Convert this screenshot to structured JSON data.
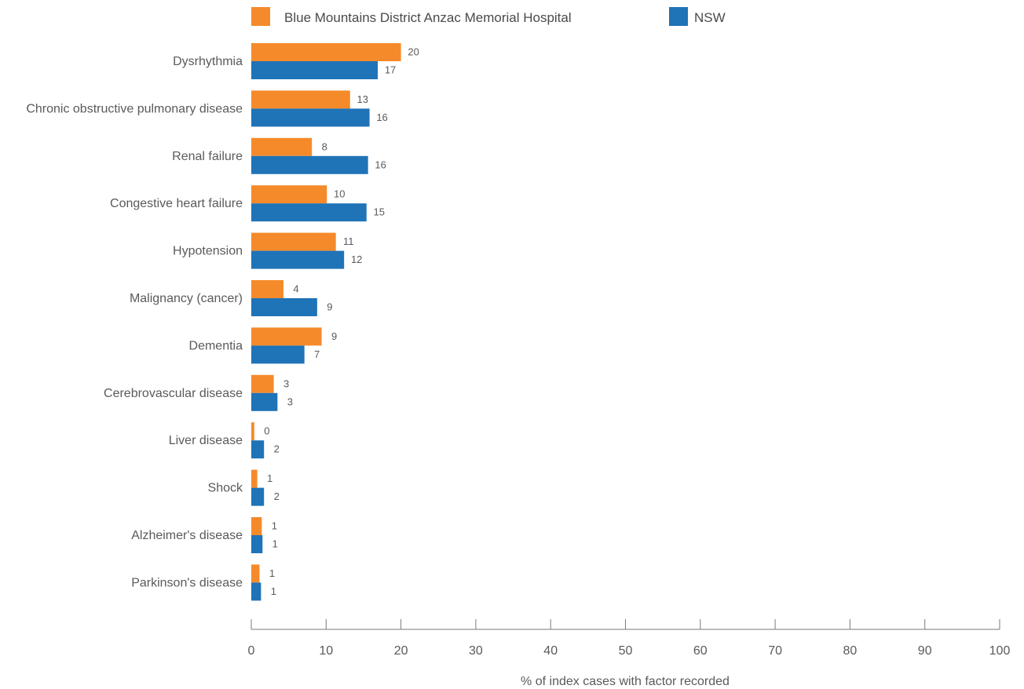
{
  "chart_data": {
    "type": "bar",
    "orientation": "horizontal",
    "categories": [
      "Dysrhythmia",
      "Chronic obstructive pulmonary disease",
      "Renal failure",
      "Congestive heart failure",
      "Hypotension",
      "Malignancy (cancer)",
      "Dementia",
      "Cerebrovascular disease",
      "Liver disease",
      "Shock",
      "Alzheimer's disease",
      "Parkinson's disease"
    ],
    "series": [
      {
        "name": "Blue Mountains District Anzac Memorial Hospital",
        "color": "#f58a2a",
        "values": [
          20,
          13.2,
          8.1,
          10.1,
          11.3,
          4.3,
          9.4,
          3,
          0.4,
          0.8,
          1.4,
          1.1
        ],
        "labels": [
          "20",
          "13",
          "8",
          "10",
          "11",
          "4",
          "9",
          "3",
          "0",
          "1",
          "1",
          "1"
        ]
      },
      {
        "name": "NSW",
        "color": "#1f73b7",
        "values": [
          16.9,
          15.8,
          15.6,
          15.4,
          12.4,
          8.8,
          7.1,
          3.5,
          1.7,
          1.7,
          1.5,
          1.3
        ],
        "labels": [
          "17",
          "16",
          "16",
          "15",
          "12",
          "9",
          "7",
          "3",
          "2",
          "2",
          "1",
          "1"
        ]
      }
    ],
    "xlabel": "% of index cases with factor recorded",
    "xlim": [
      0,
      100
    ],
    "xticks": [
      "0",
      "10",
      "20",
      "30",
      "40",
      "50",
      "60",
      "70",
      "80",
      "90",
      "100"
    ],
    "grid": false,
    "legend_position": "top"
  }
}
